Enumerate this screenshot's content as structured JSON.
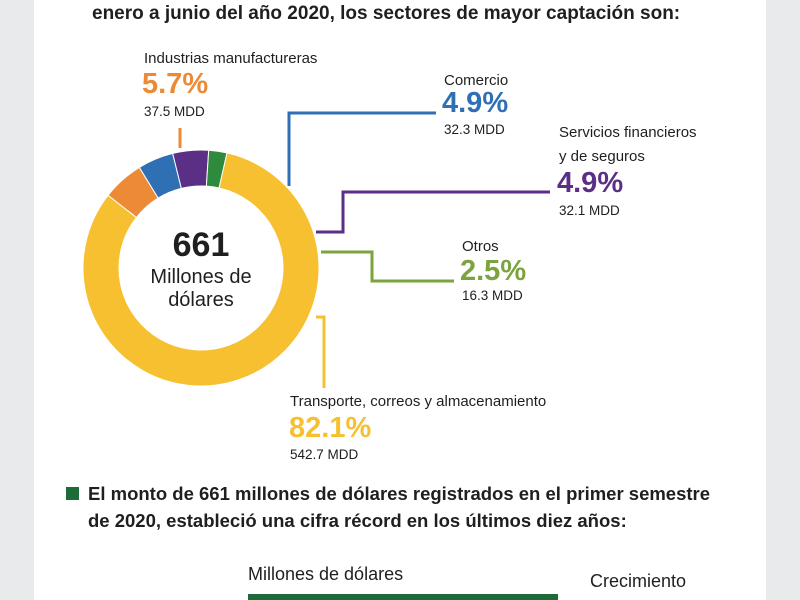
{
  "heading_text": "enero a junio del año 2020, los sectores de mayor captación son:",
  "colors": {
    "manufactureras": "#ec8a35",
    "comercio": "#2f6fb4",
    "financieros": "#5b2f86",
    "otros": "#7ba33e",
    "otros_slice": "#2e8b3e",
    "transporte": "#f7c030",
    "bullet": "#1e6b3a",
    "bar": "#1e6b3a"
  },
  "chart_data": {
    "type": "pie",
    "center_value": "661",
    "center_text_line1": "Millones de",
    "center_text_line2": "dólares",
    "slices": [
      {
        "label": "Industrias manufactureras",
        "percent": 5.7,
        "percent_label": "5.7%",
        "amount_label": "37.5 MDD",
        "color": "#ec8a35"
      },
      {
        "label": "Comercio",
        "percent": 4.9,
        "percent_label": "4.9%",
        "amount_label": "32.3 MDD",
        "color": "#2f6fb4"
      },
      {
        "label": "Servicios financieros y de seguros",
        "label_line1": "Servicios financieros",
        "label_line2": "y de seguros",
        "percent": 4.9,
        "percent_label": "4.9%",
        "amount_label": "32.1 MDD",
        "color": "#5b2f86"
      },
      {
        "label": "Otros",
        "percent": 2.5,
        "percent_label": "2.5%",
        "amount_label": "16.3 MDD",
        "color": "#7ba33e"
      },
      {
        "label": "Transporte, correos y almacenamiento",
        "percent": 82.1,
        "percent_label": "82.1%",
        "amount_label": "542.7 MDD",
        "color": "#f7c030"
      }
    ]
  },
  "note_line1": "El monto de 661 millones de dólares registrados en el primer semestre",
  "note_line2": "de 2020, estableció una cifra récord en los últimos diez años:",
  "table_header_left": "Millones de dólares",
  "table_header_right": "Crecimiento"
}
